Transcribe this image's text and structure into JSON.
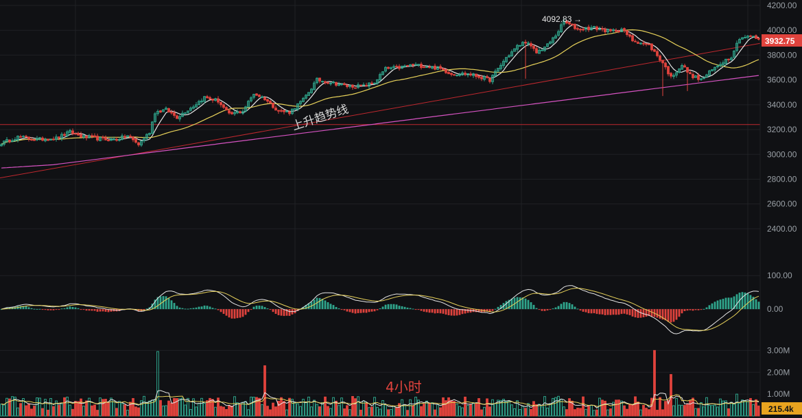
{
  "colors": {
    "background": "#101114",
    "grid": "#1f2125",
    "up": "#2fa58c",
    "down": "#e0433d",
    "ma_fast": "#e8e8e8",
    "ma_mid": "#e8d25a",
    "ma_slow": "#d653c2",
    "trendline": "#c0282e",
    "support": "#c0282e",
    "price_badge": "#e0433d",
    "volume_badge": "#e8a31f"
  },
  "chart_data": [
    {
      "type": "candlestick",
      "name": "price",
      "ylim": [
        2300,
        4200
      ],
      "yticks": [
        "4200.00",
        "4000.00",
        "3800.00",
        "3600.00",
        "3400.00",
        "3200.00",
        "3000.00",
        "2800.00",
        "2600.00",
        "2400.00"
      ],
      "grid": true,
      "annotations": {
        "high_label": "4092.83",
        "high_arrow": "→",
        "trendline_label": "上升趋势线",
        "current_price": "3932.75",
        "support_level": 3240,
        "trendline_from": [
          0,
          2810
        ],
        "trendline_to": [
          1,
          3895
        ]
      },
      "anchors": [
        [
          0,
          3090
        ],
        [
          6,
          3140
        ],
        [
          13,
          3120
        ],
        [
          20,
          3130
        ],
        [
          25,
          3180
        ],
        [
          30,
          3140
        ],
        [
          38,
          3120
        ],
        [
          42,
          3120
        ],
        [
          46,
          3150
        ],
        [
          50,
          3080
        ],
        [
          54,
          3180
        ],
        [
          56,
          3340
        ],
        [
          60,
          3360
        ],
        [
          64,
          3300
        ],
        [
          70,
          3390
        ],
        [
          74,
          3460
        ],
        [
          79,
          3430
        ],
        [
          83,
          3320
        ],
        [
          88,
          3350
        ],
        [
          92,
          3490
        ],
        [
          96,
          3450
        ],
        [
          101,
          3350
        ],
        [
          105,
          3340
        ],
        [
          110,
          3440
        ],
        [
          115,
          3600
        ],
        [
          120,
          3580
        ],
        [
          126,
          3550
        ],
        [
          132,
          3550
        ],
        [
          136,
          3580
        ],
        [
          140,
          3690
        ],
        [
          145,
          3700
        ],
        [
          150,
          3720
        ],
        [
          155,
          3710
        ],
        [
          160,
          3690
        ],
        [
          164,
          3650
        ],
        [
          170,
          3650
        ],
        [
          175,
          3620
        ],
        [
          178,
          3600
        ],
        [
          184,
          3780
        ],
        [
          188,
          3870
        ],
        [
          191,
          3910
        ],
        [
          195,
          3820
        ],
        [
          199,
          3880
        ],
        [
          202,
          3960
        ],
        [
          205,
          4070
        ],
        [
          210,
          4010
        ],
        [
          216,
          4020
        ],
        [
          222,
          3990
        ],
        [
          226,
          4010
        ],
        [
          230,
          3920
        ],
        [
          236,
          3880
        ],
        [
          241,
          3740
        ],
        [
          244,
          3620
        ],
        [
          248,
          3720
        ],
        [
          251,
          3640
        ],
        [
          255,
          3600
        ],
        [
          259,
          3680
        ],
        [
          263,
          3750
        ],
        [
          266,
          3790
        ],
        [
          269,
          3940
        ],
        [
          273,
          3950
        ],
        [
          276,
          3930
        ]
      ],
      "moving_averages": [
        {
          "name": "MA fast",
          "color": "#e8e8e8",
          "period": 6
        },
        {
          "name": "MA mid",
          "color": "#e8d25a",
          "period": 30
        },
        {
          "name": "MA slow",
          "color": "#d653c2",
          "period": 120
        }
      ]
    },
    {
      "type": "bar",
      "name": "macd",
      "ylim": [
        -100,
        125
      ],
      "yticks": [
        "100.00",
        "0.00"
      ],
      "series": [
        {
          "name": "histogram"
        },
        {
          "name": "DIF",
          "color": "#e8e8e8"
        },
        {
          "name": "DEA",
          "color": "#e8d25a"
        }
      ]
    },
    {
      "type": "bar",
      "name": "volume",
      "ylim": [
        0,
        3200000
      ],
      "yticks": [
        "3.00M",
        "2.00M",
        "1.00M"
      ],
      "current_volume": "215.4k",
      "period_label": "4小时",
      "spikes": [
        [
          57,
          2950000
        ],
        [
          96,
          2300000
        ],
        [
          238,
          3000000
        ],
        [
          244,
          1900000
        ],
        [
          268,
          1000000
        ]
      ]
    }
  ]
}
